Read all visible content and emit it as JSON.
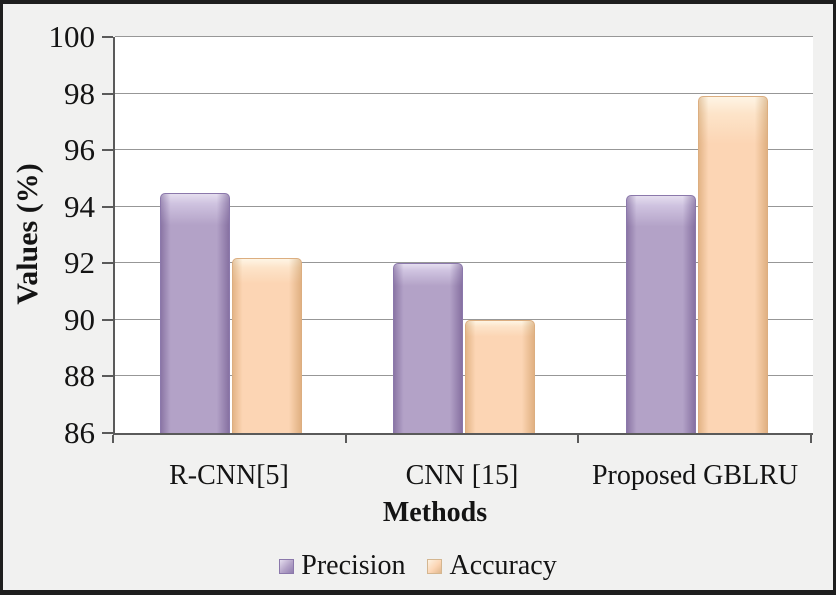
{
  "chart_data": {
    "type": "bar",
    "title": "",
    "categories": [
      "R-CNN[5]",
      "CNN [15]",
      "Proposed GBLRU"
    ],
    "series": [
      {
        "name": "Precision",
        "color": "#b3a2c7",
        "values": [
          94.5,
          92.0,
          94.4
        ]
      },
      {
        "name": "Accuracy",
        "color": "#fcd5b4",
        "values": [
          92.2,
          90.0,
          97.9
        ]
      }
    ],
    "xlabel": "Methods",
    "ylabel": "Values (%)",
    "ylim": [
      86,
      100
    ],
    "yticks": [
      86,
      88,
      90,
      92,
      94,
      96,
      98,
      100
    ],
    "grid": true,
    "legend_position": "bottom",
    "plot_bg": "#ffffff",
    "chart_bg": "#f1f1f0",
    "gridline_color": "#979797",
    "axis_color": "#5a5a5a",
    "text_color": "#141414",
    "border_color": "#1e1e1e"
  }
}
